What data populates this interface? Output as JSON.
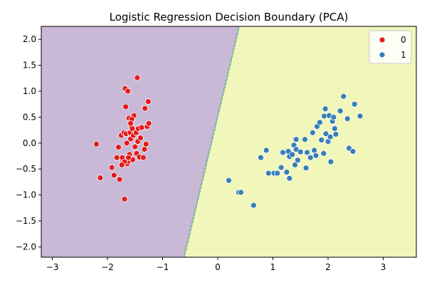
{
  "chart_data": {
    "type": "scatter",
    "title": "Logistic Regression Decision Boundary (PCA)",
    "xlabel": "",
    "ylabel": "",
    "xlim": [
      -3.2,
      3.6
    ],
    "ylim": [
      -2.2,
      2.25
    ],
    "xticks": [
      -3,
      -2,
      -1,
      0,
      1,
      2,
      3
    ],
    "yticks": [
      -2.0,
      -1.5,
      -1.0,
      -0.5,
      0.0,
      0.5,
      1.0,
      1.5,
      2.0
    ],
    "xtick_labels": [
      "−3",
      "−2",
      "−1",
      "0",
      "1",
      "2",
      "3"
    ],
    "ytick_labels": [
      "−2.0",
      "−1.5",
      "−1.0",
      "−0.5",
      "0.0",
      "0.5",
      "1.0",
      "1.5",
      "2.0"
    ],
    "grid": false,
    "legend": {
      "position": "top-right",
      "entries": [
        "0",
        "1"
      ]
    },
    "regions": [
      {
        "class": "0",
        "color": "#c9b8d6"
      },
      {
        "class": "1",
        "color": "#f1f6bb"
      }
    ],
    "decision_boundary": [
      [
        -0.62,
        -2.2
      ],
      [
        0.38,
        2.25
      ]
    ],
    "boundary_color": "#6fb39a",
    "series": [
      {
        "name": "0",
        "color": "#e41a1c",
        "points": [
          [
            -2.2,
            -0.02
          ],
          [
            -2.13,
            -0.67
          ],
          [
            -1.92,
            -0.47
          ],
          [
            -1.88,
            -0.62
          ],
          [
            -1.83,
            -0.28
          ],
          [
            -1.8,
            -0.08
          ],
          [
            -1.78,
            -0.7
          ],
          [
            -1.75,
            0.15
          ],
          [
            -1.72,
            -0.34
          ],
          [
            -1.7,
            0.2
          ],
          [
            -1.69,
            -1.08
          ],
          [
            -1.68,
            1.05
          ],
          [
            -1.67,
            0.7
          ],
          [
            -1.66,
            0.18
          ],
          [
            -1.65,
            0.0
          ],
          [
            -1.64,
            -0.4
          ],
          [
            -1.63,
            1.0
          ],
          [
            -1.62,
            -0.35
          ],
          [
            -1.61,
            0.48
          ],
          [
            -1.6,
            -0.22
          ],
          [
            -1.59,
            0.2
          ],
          [
            -1.58,
            0.08
          ],
          [
            -1.57,
            0.32
          ],
          [
            -1.56,
            0.43
          ],
          [
            -1.55,
            0.28
          ],
          [
            -1.54,
            -0.32
          ],
          [
            -1.53,
            0.15
          ],
          [
            -1.52,
            0.53
          ],
          [
            -1.5,
            -0.07
          ],
          [
            -1.48,
            0.2
          ],
          [
            -1.47,
            -0.2
          ],
          [
            -1.46,
            1.26
          ],
          [
            -1.45,
            0.03
          ],
          [
            -1.44,
            0.28
          ],
          [
            -1.42,
            -0.27
          ],
          [
            -1.4,
            0.1
          ],
          [
            -1.38,
            0.3
          ],
          [
            -1.35,
            -0.28
          ],
          [
            -1.33,
            -0.12
          ],
          [
            -1.32,
            0.67
          ],
          [
            -1.3,
            -0.02
          ],
          [
            -1.28,
            0.32
          ],
          [
            -1.26,
            0.8
          ],
          [
            -1.25,
            0.38
          ],
          [
            -1.73,
            -0.28
          ],
          [
            -1.69,
            -0.36
          ],
          [
            -1.56,
            0.46
          ],
          [
            -1.62,
            -0.28
          ],
          [
            -1.74,
            -0.42
          ],
          [
            -1.58,
            0.38
          ]
        ]
      },
      {
        "name": "1",
        "color": "#377eb8",
        "points": [
          [
            0.2,
            -0.72
          ],
          [
            0.38,
            -0.95
          ],
          [
            0.42,
            -0.95
          ],
          [
            0.65,
            -1.2
          ],
          [
            0.78,
            -0.28
          ],
          [
            0.88,
            -0.14
          ],
          [
            0.92,
            -0.58
          ],
          [
            1.02,
            -0.58
          ],
          [
            1.08,
            -0.58
          ],
          [
            1.15,
            -0.47
          ],
          [
            1.18,
            -0.18
          ],
          [
            1.25,
            -0.56
          ],
          [
            1.28,
            -0.16
          ],
          [
            1.3,
            -0.26
          ],
          [
            1.3,
            -0.68
          ],
          [
            1.35,
            -0.22
          ],
          [
            1.38,
            -0.04
          ],
          [
            1.4,
            -0.42
          ],
          [
            1.42,
            -0.12
          ],
          [
            1.42,
            0.07
          ],
          [
            1.45,
            -0.33
          ],
          [
            1.5,
            -0.17
          ],
          [
            1.58,
            0.07
          ],
          [
            1.6,
            -0.48
          ],
          [
            1.62,
            -0.18
          ],
          [
            1.68,
            -0.28
          ],
          [
            1.72,
            0.2
          ],
          [
            1.75,
            -0.14
          ],
          [
            1.78,
            -0.24
          ],
          [
            1.8,
            0.32
          ],
          [
            1.85,
            0.4
          ],
          [
            1.88,
            0.06
          ],
          [
            1.92,
            -0.2
          ],
          [
            1.93,
            0.52
          ],
          [
            1.95,
            0.66
          ],
          [
            1.96,
            0.18
          ],
          [
            2.0,
            0.03
          ],
          [
            2.02,
            0.53
          ],
          [
            2.04,
            0.12
          ],
          [
            2.05,
            -0.36
          ],
          [
            2.08,
            0.42
          ],
          [
            2.1,
            0.5
          ],
          [
            2.12,
            0.28
          ],
          [
            2.14,
            0.17
          ],
          [
            2.22,
            0.62
          ],
          [
            2.28,
            0.9
          ],
          [
            2.35,
            0.47
          ],
          [
            2.38,
            -0.1
          ],
          [
            2.45,
            -0.16
          ],
          [
            2.48,
            0.75
          ],
          [
            2.58,
            0.52
          ]
        ]
      }
    ]
  }
}
